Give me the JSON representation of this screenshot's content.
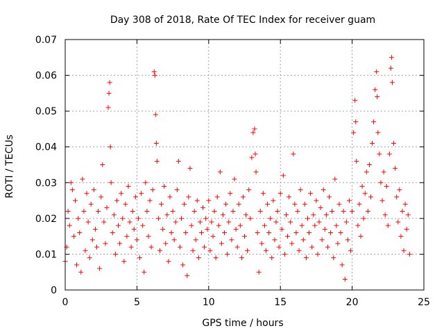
{
  "chart_data": {
    "type": "scatter",
    "title": "Day 308 of 2018, Rate Of TEC Index for receiver guam",
    "xlabel": "GPS time / hours",
    "ylabel": "ROTI / TECUs",
    "xlim": [
      0,
      25
    ],
    "ylim": [
      0,
      0.07
    ],
    "xticks": [
      0,
      5,
      10,
      15,
      20,
      25
    ],
    "xtick_labels": [
      "0",
      "5",
      "10",
      "15",
      "20",
      "25"
    ],
    "yticks": [
      0,
      0.01,
      0.02,
      0.03,
      0.04,
      0.05,
      0.06,
      0.07
    ],
    "ytick_labels": [
      "0",
      "0.01",
      "0.02",
      "0.03",
      "0.04",
      "0.05",
      "0.06",
      "0.07"
    ],
    "grid": true,
    "marker": "+",
    "marker_color": "#ff0000",
    "series": [
      {
        "points": [
          [
            0.0,
            0.008
          ],
          [
            0.1,
            0.012
          ],
          [
            0.2,
            0.022
          ],
          [
            0.3,
            0.018
          ],
          [
            0.4,
            0.03
          ],
          [
            0.5,
            0.028
          ],
          [
            0.6,
            0.015
          ],
          [
            0.7,
            0.025
          ],
          [
            0.8,
            0.007
          ],
          [
            0.9,
            0.02
          ],
          [
            1.0,
            0.016
          ],
          [
            1.1,
            0.005
          ],
          [
            1.2,
            0.031
          ],
          [
            1.3,
            0.022
          ],
          [
            1.4,
            0.011
          ],
          [
            1.5,
            0.027
          ],
          [
            1.6,
            0.019
          ],
          [
            1.7,
            0.009
          ],
          [
            1.8,
            0.024
          ],
          [
            1.9,
            0.014
          ],
          [
            2.0,
            0.028
          ],
          [
            2.1,
            0.017
          ],
          [
            2.2,
            0.012
          ],
          [
            2.3,
            0.022
          ],
          [
            2.4,
            0.006
          ],
          [
            2.5,
            0.026
          ],
          [
            2.6,
            0.035
          ],
          [
            2.7,
            0.019
          ],
          [
            2.8,
            0.013
          ],
          [
            2.9,
            0.023
          ],
          [
            3.0,
            0.051
          ],
          [
            3.05,
            0.055
          ],
          [
            3.1,
            0.058
          ],
          [
            3.15,
            0.04
          ],
          [
            3.2,
            0.03
          ],
          [
            3.3,
            0.016
          ],
          [
            3.4,
            0.021
          ],
          [
            3.5,
            0.01
          ],
          [
            3.6,
            0.025
          ],
          [
            3.7,
            0.018
          ],
          [
            3.8,
            0.013
          ],
          [
            3.9,
            0.027
          ],
          [
            4.0,
            0.02
          ],
          [
            4.1,
            0.008
          ],
          [
            4.2,
            0.024
          ],
          [
            4.3,
            0.015
          ],
          [
            4.4,
            0.029
          ],
          [
            4.5,
            0.019
          ],
          [
            4.6,
            0.012
          ],
          [
            4.7,
            0.022
          ],
          [
            4.8,
            0.017
          ],
          [
            4.9,
            0.026
          ],
          [
            5.0,
            0.014
          ],
          [
            5.1,
            0.02
          ],
          [
            5.2,
            0.009
          ],
          [
            5.3,
            0.027
          ],
          [
            5.4,
            0.018
          ],
          [
            5.5,
            0.005
          ],
          [
            5.6,
            0.03
          ],
          [
            5.7,
            0.022
          ],
          [
            5.8,
            0.015
          ],
          [
            5.9,
            0.025
          ],
          [
            6.0,
            0.012
          ],
          [
            6.1,
            0.028
          ],
          [
            6.2,
            0.061
          ],
          [
            6.25,
            0.06
          ],
          [
            6.3,
            0.049
          ],
          [
            6.35,
            0.041
          ],
          [
            6.4,
            0.036
          ],
          [
            6.5,
            0.02
          ],
          [
            6.6,
            0.011
          ],
          [
            6.7,
            0.024
          ],
          [
            6.8,
            0.017
          ],
          [
            6.9,
            0.029
          ],
          [
            7.0,
            0.013
          ],
          [
            7.1,
            0.021
          ],
          [
            7.2,
            0.008
          ],
          [
            7.3,
            0.026
          ],
          [
            7.4,
            0.016
          ],
          [
            7.5,
            0.022
          ],
          [
            7.6,
            0.014
          ],
          [
            7.7,
            0.019
          ],
          [
            7.8,
            0.028
          ],
          [
            7.9,
            0.036
          ],
          [
            8.0,
            0.012
          ],
          [
            8.1,
            0.02
          ],
          [
            8.2,
            0.007
          ],
          [
            8.3,
            0.024
          ],
          [
            8.4,
            0.016
          ],
          [
            8.5,
            0.004
          ],
          [
            8.6,
            0.026
          ],
          [
            8.7,
            0.034
          ],
          [
            8.8,
            0.018
          ],
          [
            8.9,
            0.011
          ],
          [
            9.0,
            0.022
          ],
          [
            9.1,
            0.014
          ],
          [
            9.2,
            0.025
          ],
          [
            9.3,
            0.009
          ],
          [
            9.4,
            0.019
          ],
          [
            9.5,
            0.016
          ],
          [
            9.6,
            0.023
          ],
          [
            9.7,
            0.012
          ],
          [
            9.8,
            0.02
          ],
          [
            9.9,
            0.017
          ],
          [
            10.0,
            0.025
          ],
          [
            10.1,
            0.011
          ],
          [
            10.2,
            0.019
          ],
          [
            10.3,
            0.015
          ],
          [
            10.4,
            0.022
          ],
          [
            10.5,
            0.009
          ],
          [
            10.6,
            0.026
          ],
          [
            10.7,
            0.018
          ],
          [
            10.8,
            0.033
          ],
          [
            10.9,
            0.013
          ],
          [
            11.0,
            0.021
          ],
          [
            11.1,
            0.016
          ],
          [
            11.2,
            0.024
          ],
          [
            11.3,
            0.01
          ],
          [
            11.4,
            0.019
          ],
          [
            11.5,
            0.027
          ],
          [
            11.6,
            0.014
          ],
          [
            11.7,
            0.022
          ],
          [
            11.8,
            0.031
          ],
          [
            11.9,
            0.017
          ],
          [
            12.0,
            0.012
          ],
          [
            12.1,
            0.024
          ],
          [
            12.2,
            0.018
          ],
          [
            12.3,
            0.009
          ],
          [
            12.4,
            0.026
          ],
          [
            12.5,
            0.015
          ],
          [
            12.6,
            0.021
          ],
          [
            12.7,
            0.011
          ],
          [
            12.8,
            0.028
          ],
          [
            12.9,
            0.02
          ],
          [
            13.0,
            0.037
          ],
          [
            13.1,
            0.044
          ],
          [
            13.2,
            0.045
          ],
          [
            13.25,
            0.038
          ],
          [
            13.3,
            0.033
          ],
          [
            13.4,
            0.016
          ],
          [
            13.5,
            0.005
          ],
          [
            13.6,
            0.022
          ],
          [
            13.7,
            0.013
          ],
          [
            13.8,
            0.027
          ],
          [
            13.9,
            0.018
          ],
          [
            14.0,
            0.011
          ],
          [
            14.1,
            0.024
          ],
          [
            14.2,
            0.016
          ],
          [
            14.3,
            0.02
          ],
          [
            14.4,
            0.009
          ],
          [
            14.5,
            0.025
          ],
          [
            14.6,
            0.014
          ],
          [
            14.7,
            0.019
          ],
          [
            14.8,
            0.022
          ],
          [
            14.9,
            0.012
          ],
          [
            15.0,
            0.027
          ],
          [
            15.1,
            0.017
          ],
          [
            15.2,
            0.032
          ],
          [
            15.3,
            0.01
          ],
          [
            15.4,
            0.021
          ],
          [
            15.5,
            0.015
          ],
          [
            15.6,
            0.026
          ],
          [
            15.7,
            0.019
          ],
          [
            15.8,
            0.013
          ],
          [
            15.9,
            0.038
          ],
          [
            16.0,
            0.024
          ],
          [
            16.1,
            0.016
          ],
          [
            16.2,
            0.022
          ],
          [
            16.3,
            0.011
          ],
          [
            16.4,
            0.028
          ],
          [
            16.5,
            0.018
          ],
          [
            16.6,
            0.014
          ],
          [
            16.7,
            0.024
          ],
          [
            16.8,
            0.009
          ],
          [
            16.9,
            0.02
          ],
          [
            17.0,
            0.016
          ],
          [
            17.1,
            0.027
          ],
          [
            17.2,
            0.012
          ],
          [
            17.3,
            0.021
          ],
          [
            17.4,
            0.018
          ],
          [
            17.5,
            0.025
          ],
          [
            17.6,
            0.01
          ],
          [
            17.7,
            0.019
          ],
          [
            17.8,
            0.023
          ],
          [
            17.9,
            0.014
          ],
          [
            18.0,
            0.028
          ],
          [
            18.1,
            0.017
          ],
          [
            18.2,
            0.021
          ],
          [
            18.3,
            0.012
          ],
          [
            18.4,
            0.026
          ],
          [
            18.5,
            0.016
          ],
          [
            18.6,
            0.022
          ],
          [
            18.7,
            0.009
          ],
          [
            18.8,
            0.031
          ],
          [
            18.9,
            0.018
          ],
          [
            19.0,
            0.013
          ],
          [
            19.1,
            0.024
          ],
          [
            19.2,
            0.016
          ],
          [
            19.3,
            0.007
          ],
          [
            19.4,
            0.022
          ],
          [
            19.5,
            0.003
          ],
          [
            19.6,
            0.019
          ],
          [
            19.7,
            0.014
          ],
          [
            19.8,
            0.025
          ],
          [
            19.9,
            0.011
          ],
          [
            20.0,
            0.022
          ],
          [
            20.1,
            0.044
          ],
          [
            20.2,
            0.053
          ],
          [
            20.25,
            0.047
          ],
          [
            20.3,
            0.036
          ],
          [
            20.4,
            0.018
          ],
          [
            20.5,
            0.024
          ],
          [
            20.6,
            0.015
          ],
          [
            20.7,
            0.029
          ],
          [
            20.8,
            0.02
          ],
          [
            20.9,
            0.027
          ],
          [
            21.0,
            0.033
          ],
          [
            21.1,
            0.022
          ],
          [
            21.2,
            0.035
          ],
          [
            21.3,
            0.026
          ],
          [
            21.4,
            0.041
          ],
          [
            21.5,
            0.047
          ],
          [
            21.6,
            0.056
          ],
          [
            21.7,
            0.061
          ],
          [
            21.75,
            0.054
          ],
          [
            21.8,
            0.044
          ],
          [
            21.9,
            0.038
          ],
          [
            22.0,
            0.03
          ],
          [
            22.1,
            0.025
          ],
          [
            22.2,
            0.033
          ],
          [
            22.3,
            0.021
          ],
          [
            22.4,
            0.029
          ],
          [
            22.5,
            0.018
          ],
          [
            22.6,
            0.038
          ],
          [
            22.7,
            0.062
          ],
          [
            22.75,
            0.065
          ],
          [
            22.8,
            0.058
          ],
          [
            22.9,
            0.041
          ],
          [
            23.0,
            0.034
          ],
          [
            23.1,
            0.026
          ],
          [
            23.2,
            0.019
          ],
          [
            23.3,
            0.028
          ],
          [
            23.4,
            0.015
          ],
          [
            23.5,
            0.022
          ],
          [
            23.6,
            0.011
          ],
          [
            23.7,
            0.024
          ],
          [
            23.8,
            0.017
          ],
          [
            23.9,
            0.021
          ],
          [
            24.0,
            0.01
          ]
        ]
      }
    ]
  }
}
